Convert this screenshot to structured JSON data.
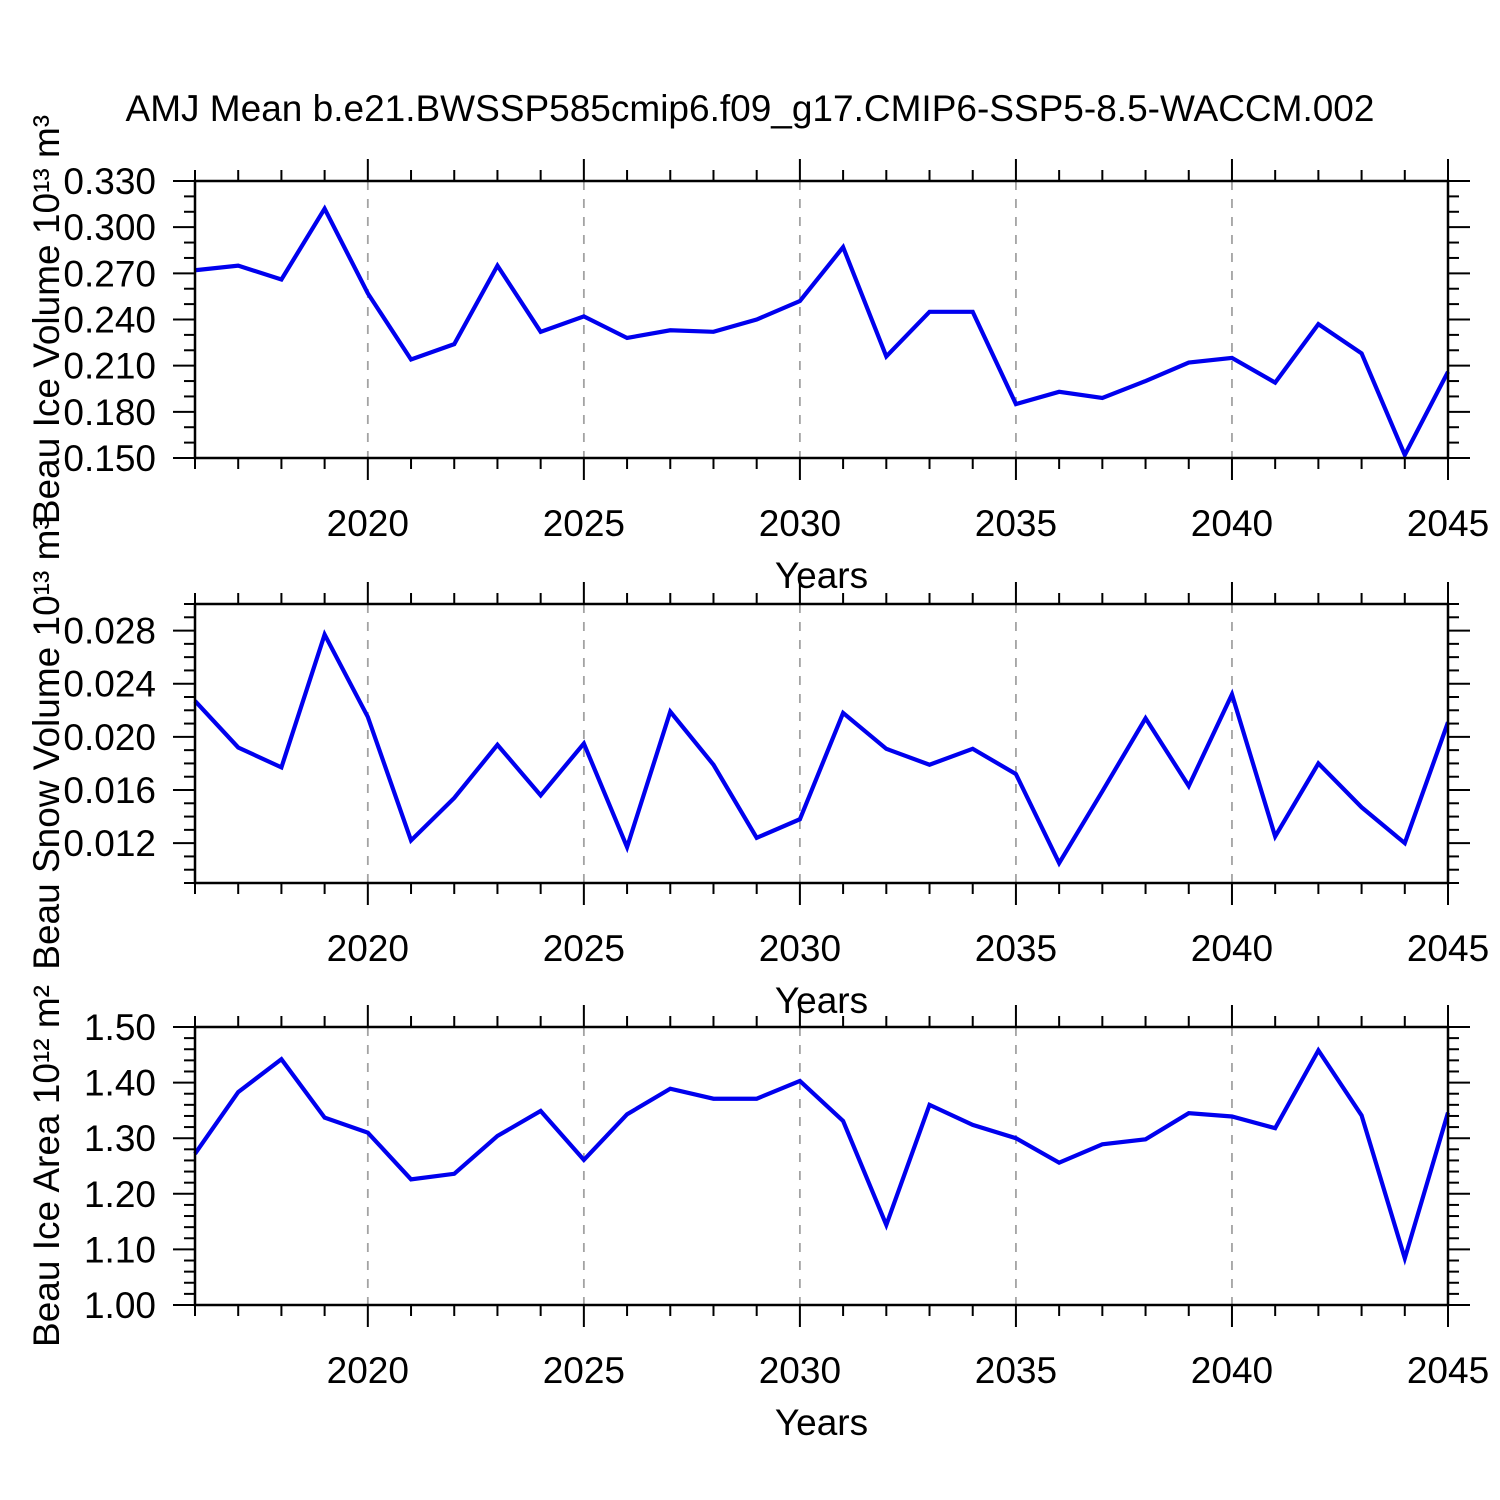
{
  "title": "AMJ Mean b.e21.BWSSP585cmip6.f09_g17.CMIP6-SSP5-8.5-WACCM.002",
  "style": {
    "line_color": "#0000ee",
    "grid_color": "#a3a3a3",
    "axis_color": "#000000"
  },
  "chart_data": [
    {
      "id": "ice-volume",
      "type": "line",
      "ylabel": "Beau Ice Volume 10¹³ m³",
      "xlabel": "Years",
      "x": [
        2016,
        2017,
        2018,
        2019,
        2020,
        2021,
        2022,
        2023,
        2024,
        2025,
        2026,
        2027,
        2028,
        2029,
        2030,
        2031,
        2032,
        2033,
        2034,
        2035,
        2036,
        2037,
        2038,
        2039,
        2040,
        2041,
        2042,
        2043,
        2044,
        2045
      ],
      "values": [
        0.272,
        0.275,
        0.266,
        0.312,
        0.257,
        0.214,
        0.224,
        0.275,
        0.232,
        0.242,
        0.228,
        0.233,
        0.232,
        0.24,
        0.252,
        0.287,
        0.216,
        0.245,
        0.245,
        0.185,
        0.193,
        0.189,
        0.2,
        0.212,
        0.215,
        0.199,
        0.237,
        0.218,
        0.152,
        0.206
      ],
      "xlim": [
        2016,
        2045
      ],
      "ylim": [
        0.15,
        0.33
      ],
      "yticks": [
        0.15,
        0.18,
        0.21,
        0.24,
        0.27,
        0.3,
        0.33
      ],
      "ytick_labels": [
        "0.150",
        "0.180",
        "0.210",
        "0.240",
        "0.270",
        "0.300",
        "0.330"
      ],
      "yminor_step": 0.01,
      "xticks_major": [
        2020,
        2025,
        2030,
        2035,
        2040,
        2045
      ],
      "xtick_labels": [
        "2020",
        "2025",
        "2030",
        "2035",
        "2040",
        "2045"
      ],
      "gridline_years": [
        2020,
        2025,
        2030,
        2035,
        2040
      ],
      "grid": "vertical-dashed"
    },
    {
      "id": "snow-volume",
      "type": "line",
      "ylabel": "Beau Snow Volume 10¹³ m³",
      "xlabel": "Years",
      "x": [
        2016,
        2017,
        2018,
        2019,
        2020,
        2021,
        2022,
        2023,
        2024,
        2025,
        2026,
        2027,
        2028,
        2029,
        2030,
        2031,
        2032,
        2033,
        2034,
        2035,
        2036,
        2037,
        2038,
        2039,
        2040,
        2041,
        2042,
        2043,
        2044,
        2045
      ],
      "values": [
        0.0227,
        0.0192,
        0.0177,
        0.0277,
        0.0215,
        0.0122,
        0.0154,
        0.0194,
        0.0156,
        0.0195,
        0.0117,
        0.0219,
        0.0179,
        0.0124,
        0.0138,
        0.0218,
        0.0191,
        0.0179,
        0.0191,
        0.0172,
        0.0105,
        0.0159,
        0.0214,
        0.0163,
        0.0232,
        0.0125,
        0.018,
        0.0147,
        0.012,
        0.0211
      ],
      "xlim": [
        2016,
        2045
      ],
      "ylim": [
        0.009,
        0.03
      ],
      "yticks": [
        0.012,
        0.016,
        0.02,
        0.024,
        0.028
      ],
      "ytick_labels": [
        "0.012",
        "0.016",
        "0.020",
        "0.024",
        "0.028"
      ],
      "yminor_step": 0.001,
      "xticks_major": [
        2020,
        2025,
        2030,
        2035,
        2040,
        2045
      ],
      "xtick_labels": [
        "2020",
        "2025",
        "2030",
        "2035",
        "2040",
        "2045"
      ],
      "gridline_years": [
        2020,
        2025,
        2030,
        2035,
        2040
      ],
      "grid": "vertical-dashed"
    },
    {
      "id": "ice-area",
      "type": "line",
      "ylabel": "Beau Ice Area 10¹² m²",
      "xlabel": "Years",
      "x": [
        2016,
        2017,
        2018,
        2019,
        2020,
        2021,
        2022,
        2023,
        2024,
        2025,
        2026,
        2027,
        2028,
        2029,
        2030,
        2031,
        2032,
        2033,
        2034,
        2035,
        2036,
        2037,
        2038,
        2039,
        2040,
        2041,
        2042,
        2043,
        2044,
        2045
      ],
      "values": [
        1.272,
        1.383,
        1.442,
        1.337,
        1.31,
        1.226,
        1.236,
        1.304,
        1.349,
        1.261,
        1.343,
        1.389,
        1.371,
        1.371,
        1.403,
        1.331,
        1.144,
        1.36,
        1.324,
        1.3,
        1.256,
        1.289,
        1.298,
        1.345,
        1.339,
        1.318,
        1.458,
        1.341,
        1.084,
        1.346
      ],
      "xlim": [
        2016,
        2045
      ],
      "ylim": [
        1.0,
        1.5
      ],
      "yticks": [
        1.0,
        1.1,
        1.2,
        1.3,
        1.4,
        1.5
      ],
      "ytick_labels": [
        "1.00",
        "1.10",
        "1.20",
        "1.30",
        "1.40",
        "1.50"
      ],
      "yminor_step": 0.02,
      "xticks_major": [
        2020,
        2025,
        2030,
        2035,
        2040,
        2045
      ],
      "xtick_labels": [
        "2020",
        "2025",
        "2030",
        "2035",
        "2040",
        "2045"
      ],
      "gridline_years": [
        2020,
        2025,
        2030,
        2035,
        2040
      ],
      "grid": "vertical-dashed"
    }
  ]
}
